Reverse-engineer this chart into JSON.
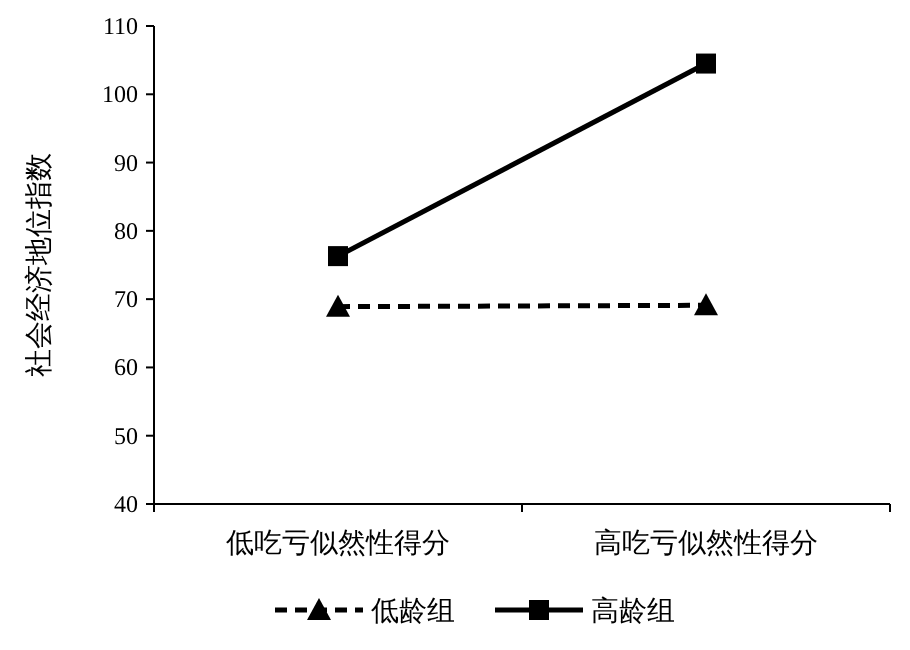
{
  "chart_data": {
    "type": "line",
    "ylabel": "社会经济地位指数",
    "categories": [
      "低吃亏似然性得分",
      "高吃亏似然性得分"
    ],
    "series": [
      {
        "name": "低龄组",
        "color": "#000000",
        "values": [
          68.9,
          69.1
        ],
        "marker": "triangle",
        "line_style": "dashed"
      },
      {
        "name": "高龄组",
        "color": "#000000",
        "values": [
          76.3,
          104.5
        ],
        "marker": "square",
        "line_style": "solid"
      }
    ],
    "ylim": [
      40,
      110
    ],
    "yticks": [
      40,
      50,
      60,
      70,
      80,
      90,
      100,
      110
    ],
    "grid": false,
    "legend": "bottom"
  }
}
